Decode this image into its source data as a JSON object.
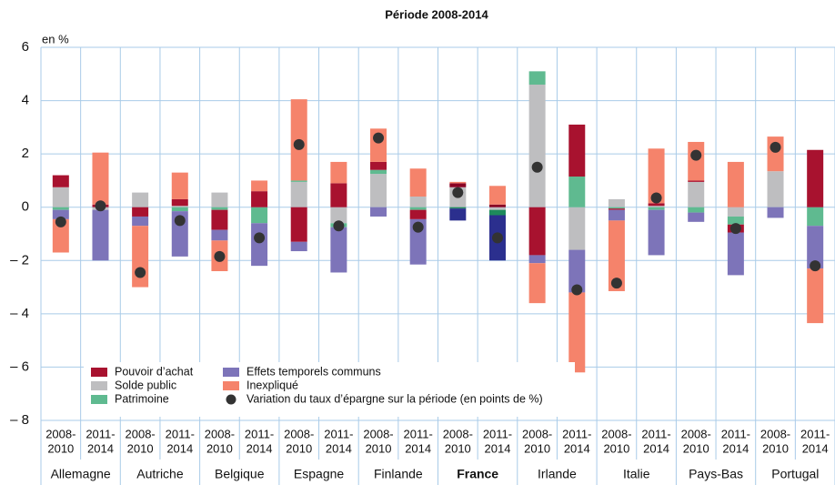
{
  "chart_data": {
    "type": "stacked-bar-dot",
    "title": "Période 2008-2014",
    "y_label": "en %",
    "groups": [
      "Allemagne",
      "Autriche",
      "Belgique",
      "Espagne",
      "Finlande",
      "France",
      "Irlande",
      "Italie",
      "Pays-Bas",
      "Portugal"
    ],
    "highlight_group_index": 5,
    "categories": [
      [
        "2008-",
        "2010"
      ],
      [
        "2011-",
        "2014"
      ],
      [
        "2008-",
        "2010"
      ],
      [
        "2011-",
        "2014"
      ],
      [
        "2008-",
        "2010"
      ],
      [
        "2011-",
        "2014"
      ],
      [
        "2008-",
        "2010"
      ],
      [
        "2011-",
        "2014"
      ],
      [
        "2008-",
        "2010"
      ],
      [
        "2011-",
        "2014"
      ],
      [
        "2008-",
        "2010"
      ],
      [
        "2011-",
        "2014"
      ],
      [
        "2008-",
        "2010"
      ],
      [
        "2011-",
        "2014"
      ],
      [
        "2008-",
        "2010"
      ],
      [
        "2011-",
        "2014"
      ],
      [
        "2008-",
        "2010"
      ],
      [
        "2011-",
        "2014"
      ],
      [
        "2008-",
        "2010"
      ],
      [
        "2011-",
        "2014"
      ]
    ],
    "stack_order": [
      1,
      2,
      0,
      3,
      4
    ],
    "series": [
      {
        "name": "Pouvoir d’achat",
        "color": "#a8122f",
        "highlight_color": "#8a0024",
        "values": [
          0.45,
          0.1,
          -0.35,
          0.25,
          -0.75,
          0.6,
          -1.3,
          0.9,
          0.3,
          -0.35,
          0.15,
          0.1,
          -1.8,
          1.95,
          -0.05,
          0.1,
          0.05,
          -0.3,
          0,
          2.15
        ]
      },
      {
        "name": "Solde public",
        "color": "#bebec0",
        "highlight_color": "#bebec0",
        "values": [
          0.75,
          -0.1,
          0.55,
          0.05,
          0.55,
          0,
          0.95,
          -0.6,
          1.25,
          0.4,
          0.75,
          -0.1,
          4.6,
          -1.6,
          0.3,
          0.05,
          0.95,
          -0.35,
          1.35,
          0
        ]
      },
      {
        "name": "Patrimoine",
        "color": "#5fba90",
        "highlight_color": "#1e8a5c",
        "values": [
          -0.1,
          0,
          0,
          -0.15,
          -0.1,
          -0.6,
          0.05,
          -0.15,
          0.15,
          -0.1,
          -0.05,
          -0.2,
          0.5,
          1.15,
          -0.05,
          -0.1,
          -0.2,
          -0.3,
          0,
          -0.7
        ]
      },
      {
        "name": "Effets temporels communs",
        "color": "#7d74b9",
        "highlight_color": "#2b2f8e",
        "values": [
          -0.35,
          -1.9,
          -0.35,
          -1.7,
          -0.4,
          -1.6,
          -0.35,
          -1.7,
          -0.35,
          -1.7,
          -0.45,
          -1.7,
          -0.3,
          -1.6,
          -0.4,
          -1.7,
          -0.35,
          -1.6,
          -0.4,
          -1.6
        ]
      },
      {
        "name": "Inexpliqué",
        "color": "#f5836b",
        "highlight_color": "#f5836b",
        "values": [
          -1.25,
          1.95,
          -2.3,
          1.0,
          -1.15,
          0.4,
          3.05,
          0.8,
          1.25,
          1.05,
          0.05,
          0.7,
          -1.5,
          -3.0,
          -2.65,
          2.05,
          1.45,
          1.7,
          1.3,
          -2.05
        ]
      }
    ],
    "dots": {
      "name": "Variation du taux d’épargne sur la période (en points de %)",
      "color": "#333333",
      "values": [
        -0.55,
        0.05,
        -2.45,
        -0.5,
        -1.85,
        -1.15,
        2.35,
        -0.7,
        2.6,
        -0.75,
        0.55,
        -1.15,
        1.5,
        -3.1,
        -2.85,
        0.35,
        1.95,
        -0.8,
        2.25,
        -2.2
      ]
    },
    "ylim": [
      -8,
      6
    ],
    "yticks": [
      {
        "value": -8,
        "label": "– 8"
      },
      {
        "value": -6,
        "label": "– 6"
      },
      {
        "value": -4,
        "label": "– 4"
      },
      {
        "value": -2,
        "label": "– 2"
      },
      0,
      2,
      4,
      6
    ],
    "grid": true
  }
}
